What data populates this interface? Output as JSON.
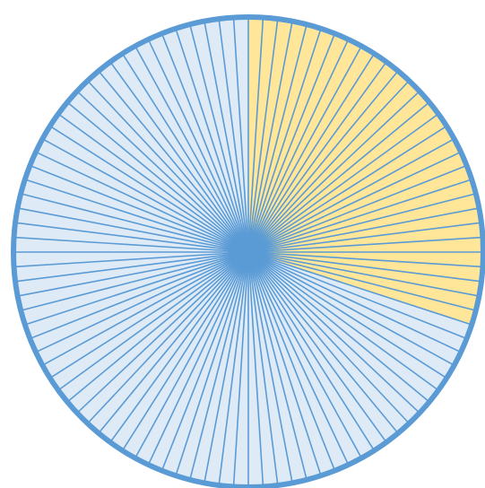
{
  "diagram": {
    "type": "radial-sector-wheel",
    "total_sectors": 100,
    "highlighted_sectors": 30,
    "highlighted_fraction": 0.3,
    "colors": {
      "highlight_fill": "#FFE699",
      "base_fill": "#DEEBF7",
      "line": "#5B9BD5",
      "outline": "#5B9BD5"
    }
  }
}
